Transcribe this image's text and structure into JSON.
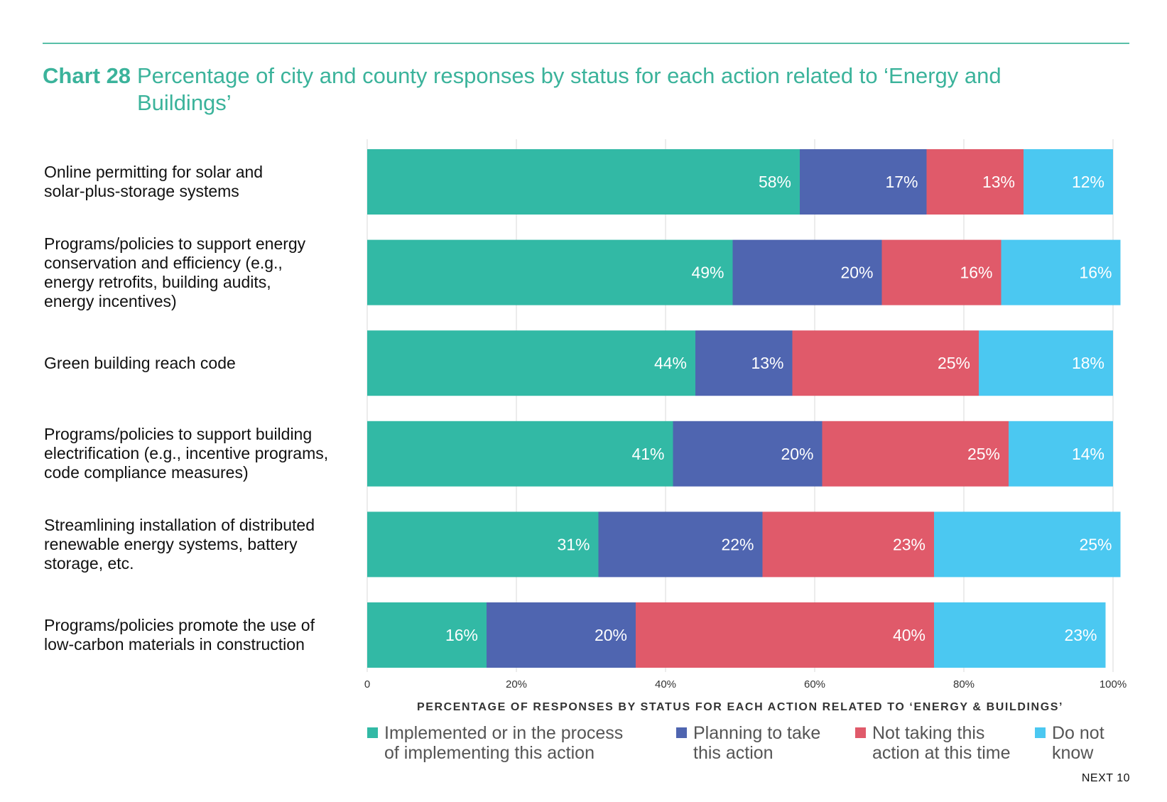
{
  "title": {
    "lead": "Chart 28",
    "text": "Percentage of city and county responses by status for each action related to ‘Energy and Buildings’"
  },
  "footer": "NEXT 10",
  "colors": {
    "implemented": "#32b9a5",
    "planning": "#4f65b0",
    "not_taking": "#e05a6a",
    "do_not_know": "#4bc8f1",
    "title": "#3bb39b",
    "grid": "#d9d9d9"
  },
  "chart_data": {
    "type": "bar",
    "orientation": "horizontal",
    "stacked": true,
    "categories": [
      "Online permitting for solar and\nsolar-plus-storage systems",
      "Programs/policies to support energy\nconservation and efficiency (e.g.,\nenergy retrofits, building audits,\nenergy incentives)",
      "Green building reach code",
      "Programs/policies to support building\nelectrification (e.g., incentive programs,\ncode compliance measures)",
      "Streamlining installation of distributed\nrenewable energy systems, battery\nstorage, etc.",
      "Programs/policies promote the use of\nlow-carbon materials in construction"
    ],
    "series": [
      {
        "name": "Implemented or in the process\nof implementing this action",
        "key": "implemented",
        "values": [
          58,
          49,
          44,
          41,
          31,
          16
        ]
      },
      {
        "name": "Planning to take\nthis action",
        "key": "planning",
        "values": [
          17,
          20,
          13,
          20,
          22,
          20
        ]
      },
      {
        "name": "Not taking this\naction at this time",
        "key": "not_taking",
        "values": [
          13,
          16,
          25,
          25,
          23,
          40
        ]
      },
      {
        "name": "Do not\nknow",
        "key": "do_not_know",
        "values": [
          12,
          16,
          18,
          14,
          25,
          23
        ]
      }
    ],
    "data_labels": [
      [
        "58%",
        "17%",
        "13%",
        "12%"
      ],
      [
        "49%",
        "20%",
        "16%",
        "16%"
      ],
      [
        "44%",
        "13%",
        "25%",
        "18%"
      ],
      [
        "41%",
        "20%",
        "25%",
        "14%"
      ],
      [
        "31%",
        "22%",
        "23%",
        "25%"
      ],
      [
        "16%",
        "20%",
        "40%",
        "23%"
      ]
    ],
    "xlabel": "PERCENTAGE OF RESPONSES BY STATUS FOR EACH ACTION RELATED TO ‘ENERGY & BUILDINGS’",
    "xlim": [
      0,
      100
    ],
    "xticks": [
      0,
      20,
      40,
      60,
      80,
      100
    ],
    "xtick_labels": [
      "0",
      "20%",
      "40%",
      "60%",
      "80%",
      "100%"
    ],
    "grid": true,
    "legend_position": "bottom"
  }
}
